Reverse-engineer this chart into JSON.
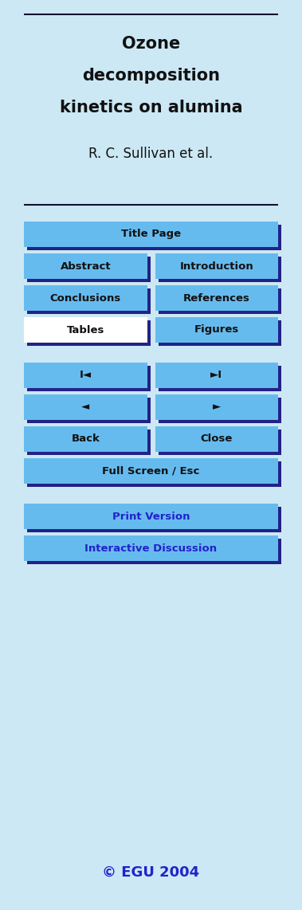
{
  "bg_color": "#cce8f4",
  "title_lines": [
    "Ozone",
    "decomposition",
    "kinetics on alumina"
  ],
  "author": "R. C. Sullivan et al.",
  "title_fontsize": 15,
  "author_fontsize": 12,
  "button_bg": "#66bbee",
  "button_bg_white": "#ffffff",
  "button_border": "#222288",
  "button_text_color": "#111111",
  "button_blue_text_color": "#2222cc",
  "separator_color": "#111133",
  "buttons": [
    {
      "label": "Title Page",
      "col": "full",
      "white_bg": false,
      "blue_text": false
    },
    {
      "label": "Abstract",
      "col": "left",
      "white_bg": false,
      "blue_text": false
    },
    {
      "label": "Introduction",
      "col": "right",
      "white_bg": false,
      "blue_text": false
    },
    {
      "label": "Conclusions",
      "col": "left",
      "white_bg": false,
      "blue_text": false
    },
    {
      "label": "References",
      "col": "right",
      "white_bg": false,
      "blue_text": false
    },
    {
      "label": "Tables",
      "col": "left",
      "white_bg": true,
      "blue_text": false
    },
    {
      "label": "Figures",
      "col": "right",
      "white_bg": false,
      "blue_text": false
    },
    {
      "label": "I◄",
      "col": "left",
      "white_bg": false,
      "blue_text": false,
      "gap_before": true
    },
    {
      "label": "►I",
      "col": "right",
      "white_bg": false,
      "blue_text": false
    },
    {
      "label": "◄",
      "col": "left",
      "white_bg": false,
      "blue_text": false
    },
    {
      "label": "►",
      "col": "right",
      "white_bg": false,
      "blue_text": false
    },
    {
      "label": "Back",
      "col": "left",
      "white_bg": false,
      "blue_text": false
    },
    {
      "label": "Close",
      "col": "right",
      "white_bg": false,
      "blue_text": false
    },
    {
      "label": "Full Screen / Esc",
      "col": "full",
      "white_bg": false,
      "blue_text": false
    },
    {
      "label": "Print Version",
      "col": "full",
      "white_bg": false,
      "blue_text": true,
      "gap_before": true
    },
    {
      "label": "Interactive Discussion",
      "col": "full",
      "white_bg": false,
      "blue_text": true
    }
  ],
  "copyright": "© EGU 2004",
  "copyright_color": "#2222cc",
  "copyright_fontsize": 13
}
